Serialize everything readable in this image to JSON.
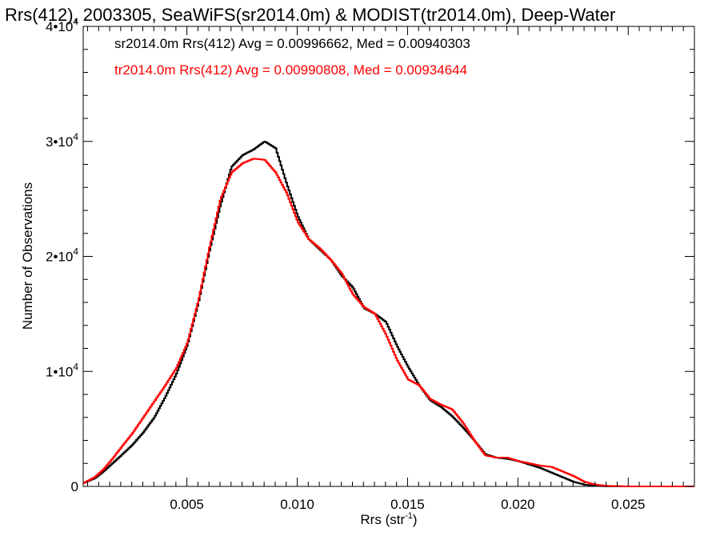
{
  "chart_data": {
    "type": "line",
    "title": "Rrs(412), 2003305, SeaWiFS(sr2014.0m) & MODIST(tr2014.0m), Deep-Water",
    "xlabel": "Rrs (str",
    "xlabel_sup": "-1",
    "xlabel_close": ")",
    "ylabel": "Number of Observations",
    "xlim": [
      0.0003,
      0.028
    ],
    "ylim": [
      0,
      40000
    ],
    "x_ticks": [
      {
        "value": 0.005,
        "label": "0.005"
      },
      {
        "value": 0.01,
        "label": "0.010"
      },
      {
        "value": 0.015,
        "label": "0.015"
      },
      {
        "value": 0.02,
        "label": "0.020"
      },
      {
        "value": 0.025,
        "label": "0.025"
      }
    ],
    "y_ticks": [
      {
        "value": 0,
        "mant": "0",
        "exp": ""
      },
      {
        "value": 10000,
        "mant": "1•10",
        "exp": "4"
      },
      {
        "value": 20000,
        "mant": "2•10",
        "exp": "4"
      },
      {
        "value": 30000,
        "mant": "3•10",
        "exp": "4"
      },
      {
        "value": 40000,
        "mant": "4•10",
        "exp": "4"
      }
    ],
    "annotations": [
      {
        "text": "sr2014.0m Rrs(412) Avg = 0.00996662, Med = 0.00940303",
        "color": "#000000"
      },
      {
        "text": "tr2014.0m Rrs(412) Avg = 0.00990808, Med = 0.00934644",
        "color": "#ff0000"
      }
    ],
    "series": [
      {
        "color": "#000000",
        "points": [
          [
            0.0003,
            300
          ],
          [
            0.0008,
            700
          ],
          [
            0.0012,
            1300
          ],
          [
            0.0016,
            2000
          ],
          [
            0.002,
            2700
          ],
          [
            0.0025,
            3600
          ],
          [
            0.003,
            4700
          ],
          [
            0.0035,
            6000
          ],
          [
            0.004,
            7800
          ],
          [
            0.0045,
            9800
          ],
          [
            0.005,
            12300
          ],
          [
            0.0055,
            16000
          ],
          [
            0.006,
            20500
          ],
          [
            0.0065,
            24500
          ],
          [
            0.007,
            27800
          ],
          [
            0.0075,
            28800
          ],
          [
            0.008,
            29300
          ],
          [
            0.0085,
            30000
          ],
          [
            0.009,
            29400
          ],
          [
            0.0095,
            26300
          ],
          [
            0.01,
            23500
          ],
          [
            0.0105,
            21500
          ],
          [
            0.011,
            20600
          ],
          [
            0.0115,
            19700
          ],
          [
            0.012,
            18300
          ],
          [
            0.0125,
            17300
          ],
          [
            0.013,
            15500
          ],
          [
            0.0135,
            15000
          ],
          [
            0.014,
            14300
          ],
          [
            0.0145,
            12200
          ],
          [
            0.015,
            10400
          ],
          [
            0.0155,
            8800
          ],
          [
            0.016,
            7500
          ],
          [
            0.0165,
            6900
          ],
          [
            0.017,
            6100
          ],
          [
            0.0175,
            5100
          ],
          [
            0.018,
            4000
          ],
          [
            0.0185,
            2800
          ],
          [
            0.019,
            2500
          ],
          [
            0.0195,
            2400
          ],
          [
            0.02,
            2200
          ],
          [
            0.0205,
            1900
          ],
          [
            0.021,
            1600
          ],
          [
            0.0215,
            1200
          ],
          [
            0.022,
            800
          ],
          [
            0.0225,
            400
          ],
          [
            0.023,
            150
          ],
          [
            0.0235,
            50
          ],
          [
            0.024,
            10
          ],
          [
            0.025,
            0
          ],
          [
            0.028,
            0
          ]
        ]
      },
      {
        "color": "#ff0000",
        "points": [
          [
            0.0003,
            300
          ],
          [
            0.0008,
            800
          ],
          [
            0.0012,
            1500
          ],
          [
            0.0016,
            2400
          ],
          [
            0.002,
            3400
          ],
          [
            0.0025,
            4600
          ],
          [
            0.003,
            6000
          ],
          [
            0.0035,
            7400
          ],
          [
            0.004,
            8800
          ],
          [
            0.0045,
            10300
          ],
          [
            0.005,
            12500
          ],
          [
            0.0055,
            16200
          ],
          [
            0.006,
            20800
          ],
          [
            0.0065,
            25000
          ],
          [
            0.007,
            27300
          ],
          [
            0.0075,
            28100
          ],
          [
            0.008,
            28500
          ],
          [
            0.0085,
            28400
          ],
          [
            0.009,
            27300
          ],
          [
            0.0095,
            25500
          ],
          [
            0.01,
            23000
          ],
          [
            0.0105,
            21500
          ],
          [
            0.011,
            20700
          ],
          [
            0.0115,
            19700
          ],
          [
            0.012,
            18500
          ],
          [
            0.0125,
            16700
          ],
          [
            0.013,
            15600
          ],
          [
            0.0135,
            15000
          ],
          [
            0.014,
            13200
          ],
          [
            0.0145,
            11000
          ],
          [
            0.015,
            9300
          ],
          [
            0.0155,
            8800
          ],
          [
            0.016,
            7600
          ],
          [
            0.0165,
            7100
          ],
          [
            0.017,
            6700
          ],
          [
            0.0175,
            5500
          ],
          [
            0.018,
            4000
          ],
          [
            0.0185,
            2700
          ],
          [
            0.019,
            2500
          ],
          [
            0.0195,
            2500
          ],
          [
            0.02,
            2200
          ],
          [
            0.0205,
            2000
          ],
          [
            0.021,
            1800
          ],
          [
            0.0215,
            1700
          ],
          [
            0.022,
            1300
          ],
          [
            0.0225,
            900
          ],
          [
            0.023,
            400
          ],
          [
            0.0235,
            150
          ],
          [
            0.024,
            50
          ],
          [
            0.025,
            0
          ],
          [
            0.028,
            0
          ]
        ]
      }
    ]
  }
}
